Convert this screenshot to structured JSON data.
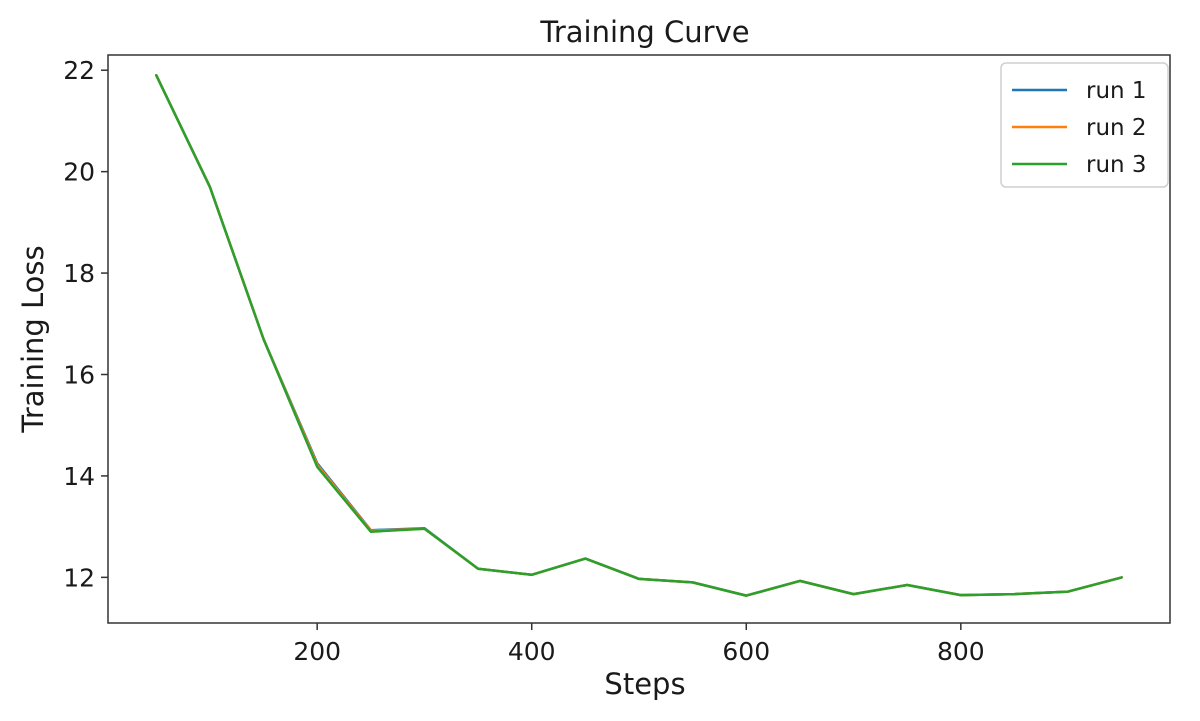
{
  "chart_data": {
    "type": "line",
    "title": "Training Curve",
    "xlabel": "Steps",
    "ylabel": "Training Loss",
    "xlim": [
      5,
      995
    ],
    "ylim": [
      11.1,
      22.3
    ],
    "xticks": [
      200,
      400,
      600,
      800
    ],
    "yticks": [
      12,
      14,
      16,
      18,
      20,
      22
    ],
    "grid": false,
    "legend_position": "top-right",
    "x": [
      50,
      100,
      150,
      200,
      250,
      300,
      350,
      400,
      450,
      500,
      550,
      600,
      650,
      700,
      750,
      800,
      850,
      900,
      950
    ],
    "series": [
      {
        "name": "run 1",
        "color": "#1f77b4",
        "values": [
          21.9,
          19.7,
          16.7,
          14.25,
          12.93,
          12.97,
          12.17,
          12.05,
          12.37,
          11.97,
          11.9,
          11.64,
          11.93,
          11.67,
          11.85,
          11.65,
          11.67,
          11.72,
          12.0
        ]
      },
      {
        "name": "run 2",
        "color": "#ff7f0e",
        "values": [
          21.9,
          19.7,
          16.7,
          14.22,
          12.92,
          12.96,
          12.17,
          12.05,
          12.37,
          11.97,
          11.9,
          11.64,
          11.93,
          11.67,
          11.85,
          11.65,
          11.67,
          11.72,
          12.0
        ]
      },
      {
        "name": "run 3",
        "color": "#2ca02c",
        "values": [
          21.9,
          19.7,
          16.7,
          14.18,
          12.9,
          12.96,
          12.17,
          12.05,
          12.37,
          11.97,
          11.9,
          11.64,
          11.93,
          11.67,
          11.85,
          11.65,
          11.67,
          11.72,
          12.0
        ]
      }
    ]
  }
}
